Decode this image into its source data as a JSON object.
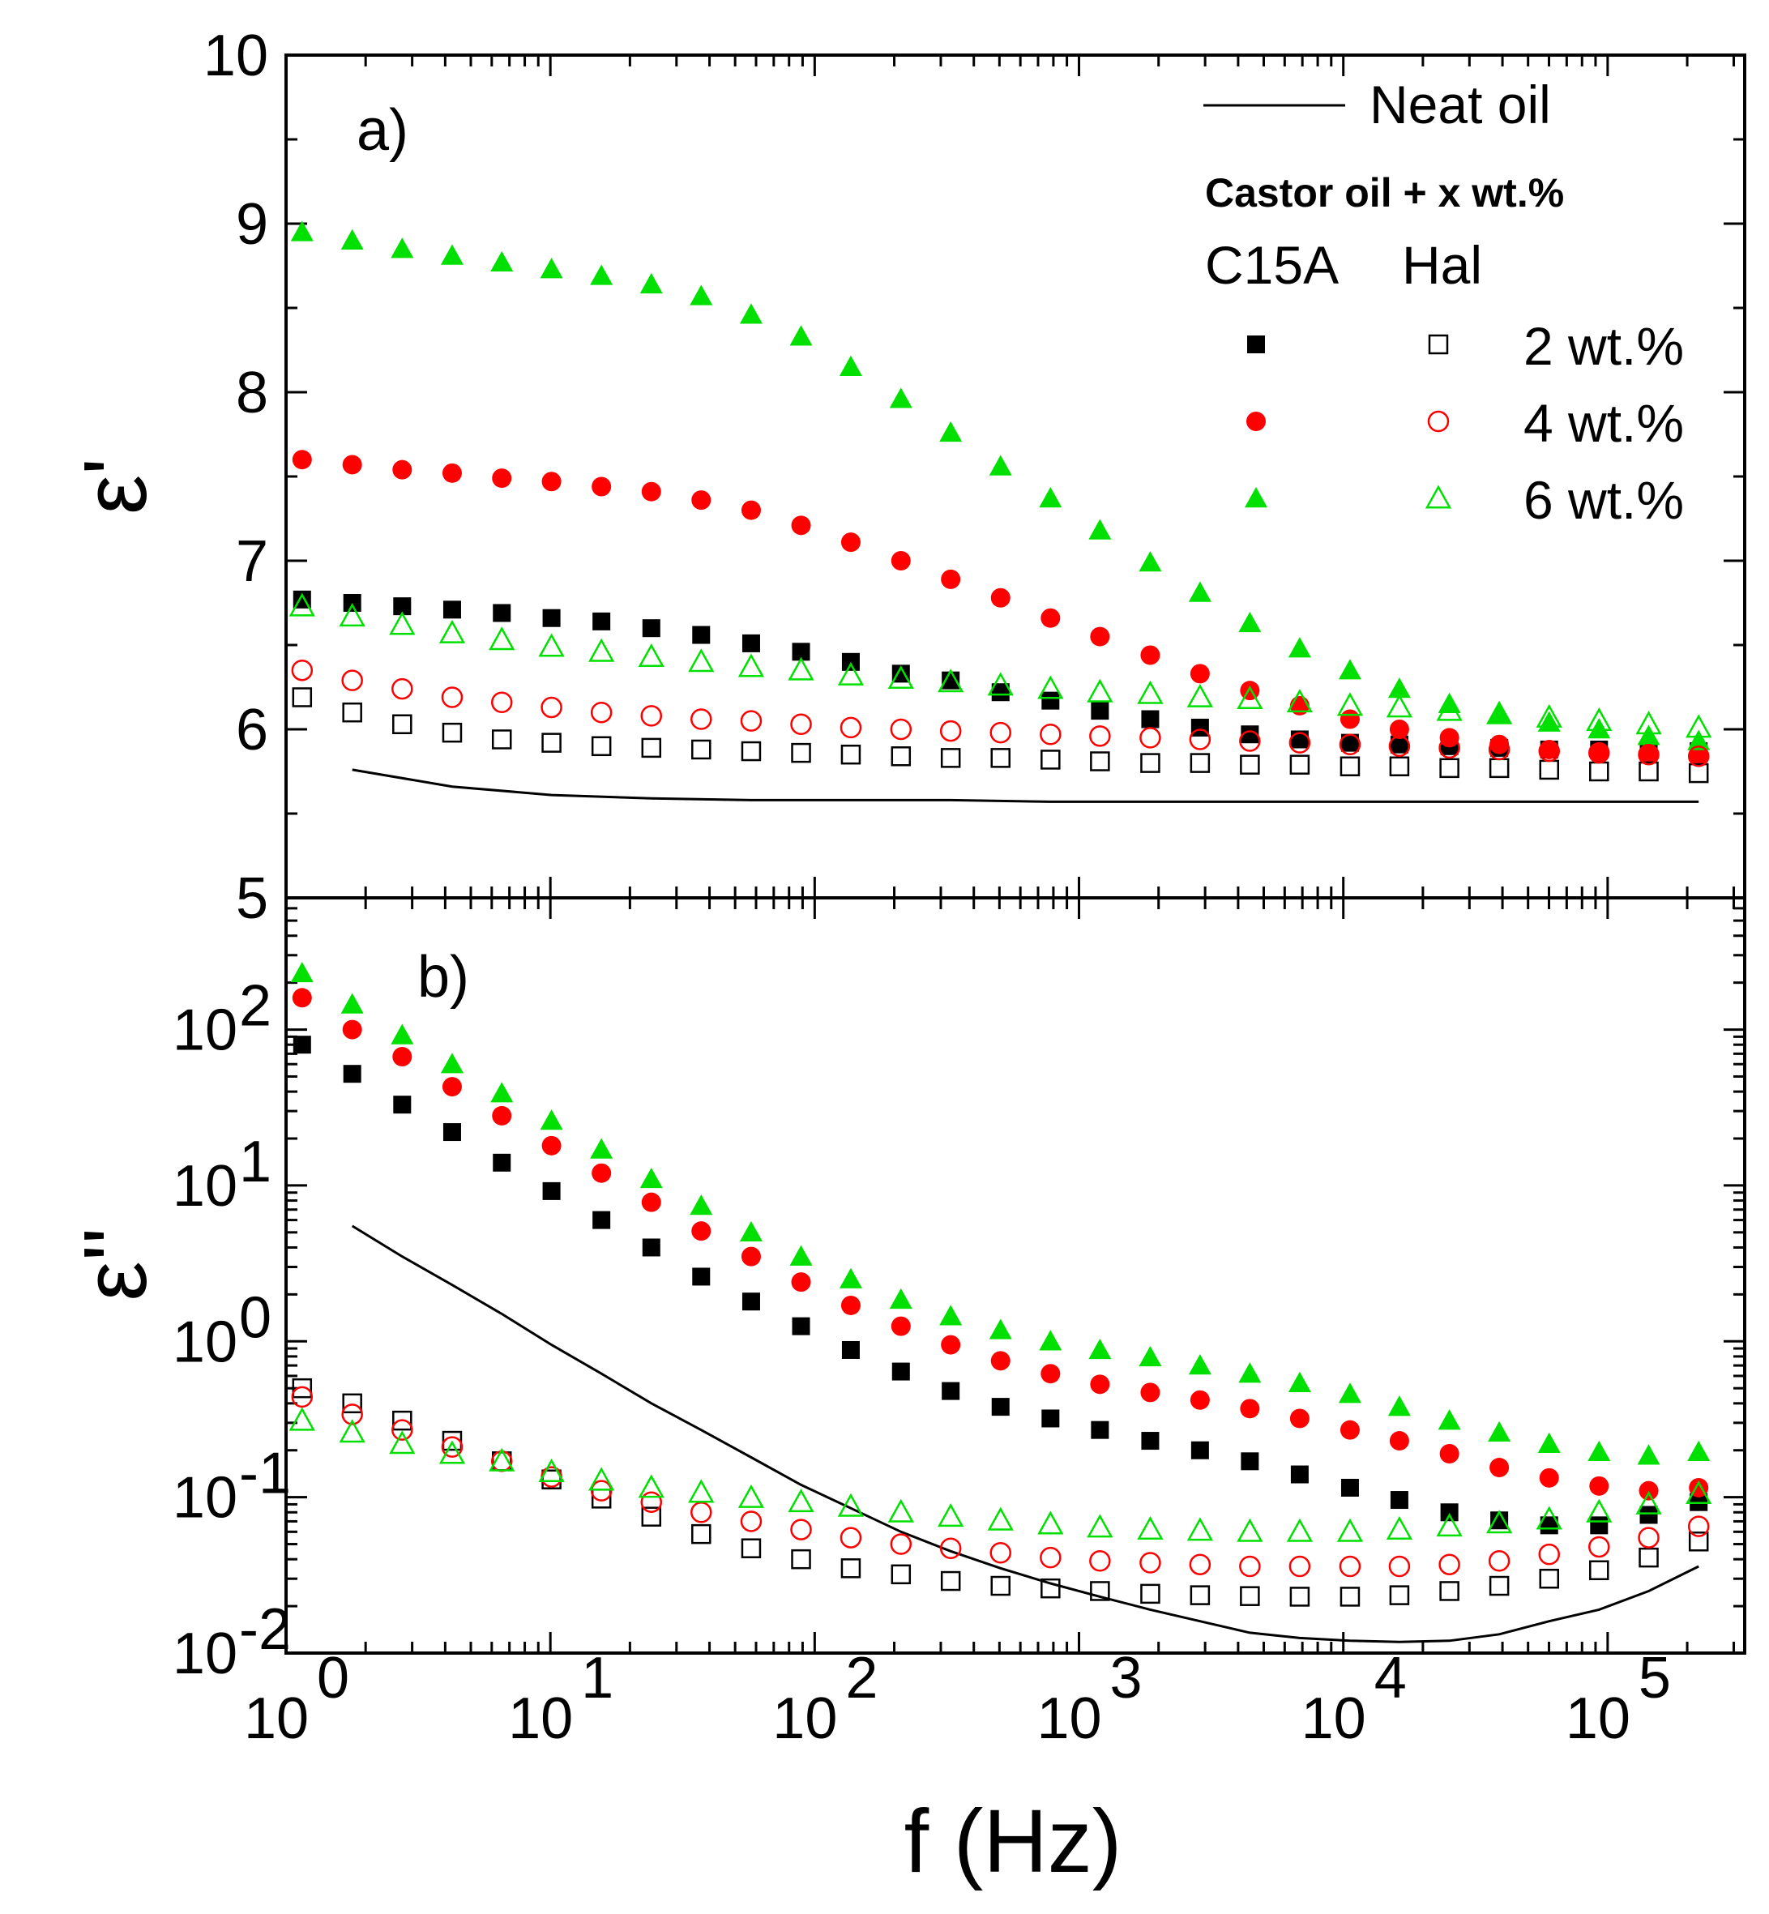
{
  "chart_data": [
    {
      "panel": "a)",
      "type": "scatter",
      "xscale": "log",
      "yscale": "linear",
      "xlim": [
        1,
        330000
      ],
      "ylim": [
        5,
        10
      ],
      "ylabel": "ε'",
      "yticks": [
        5,
        6,
        7,
        8,
        9,
        10
      ],
      "x": [
        1.15,
        1.78,
        2.75,
        4.25,
        6.55,
        10.1,
        15.6,
        24.1,
        37.2,
        57.5,
        88.8,
        137,
        212,
        327,
        505,
        780,
        1200,
        1860,
        2870,
        4430,
        6840,
        10600,
        16300,
        25200,
        38900,
        60100,
        92800,
        143000,
        221000
      ],
      "series": [
        {
          "name": "C15A 2 wt.%",
          "marker": "square",
          "filled": true,
          "color": "#000000",
          "values": [
            6.77,
            6.75,
            6.73,
            6.71,
            6.69,
            6.66,
            6.64,
            6.6,
            6.56,
            6.51,
            6.46,
            6.4,
            6.33,
            6.29,
            6.22,
            6.17,
            6.11,
            6.06,
            6.01,
            5.97,
            5.94,
            5.92,
            5.91,
            5.9,
            5.89,
            5.88,
            5.88,
            5.87,
            5.87
          ]
        },
        {
          "name": "C15A 4 wt.%",
          "marker": "circle",
          "filled": true,
          "color": "#ff0000",
          "values": [
            7.6,
            7.57,
            7.54,
            7.52,
            7.49,
            7.47,
            7.44,
            7.41,
            7.36,
            7.3,
            7.21,
            7.11,
            7.0,
            6.89,
            6.78,
            6.66,
            6.55,
            6.44,
            6.33,
            6.23,
            6.14,
            6.06,
            6.0,
            5.95,
            5.91,
            5.88,
            5.86,
            5.85,
            5.84
          ]
        },
        {
          "name": "C15A 6 wt.%",
          "marker": "triangle",
          "filled": true,
          "color": "#00e000",
          "values": [
            8.95,
            8.9,
            8.85,
            8.81,
            8.77,
            8.73,
            8.69,
            8.64,
            8.57,
            8.46,
            8.33,
            8.15,
            7.96,
            7.76,
            7.56,
            7.37,
            7.18,
            6.99,
            6.81,
            6.63,
            6.48,
            6.35,
            6.24,
            6.15,
            6.09,
            6.04,
            6.0,
            5.96,
            5.93
          ]
        },
        {
          "name": "Hal 2 wt.%",
          "marker": "square",
          "filled": false,
          "color": "#000000",
          "values": [
            6.19,
            6.1,
            6.03,
            5.98,
            5.94,
            5.92,
            5.9,
            5.89,
            5.88,
            5.87,
            5.86,
            5.85,
            5.84,
            5.83,
            5.83,
            5.82,
            5.81,
            5.8,
            5.8,
            5.79,
            5.79,
            5.78,
            5.78,
            5.77,
            5.77,
            5.76,
            5.75,
            5.75,
            5.74
          ]
        },
        {
          "name": "Hal 4 wt.%",
          "marker": "circle",
          "filled": false,
          "color": "#ff0000",
          "values": [
            6.35,
            6.29,
            6.24,
            6.19,
            6.16,
            6.13,
            6.1,
            6.08,
            6.06,
            6.05,
            6.03,
            6.01,
            6.0,
            5.99,
            5.98,
            5.97,
            5.96,
            5.95,
            5.94,
            5.93,
            5.92,
            5.91,
            5.9,
            5.89,
            5.88,
            5.87,
            5.86,
            5.85,
            5.84
          ]
        },
        {
          "name": "Hal 6 wt.%",
          "marker": "triangle",
          "filled": false,
          "color": "#00e000",
          "values": [
            6.73,
            6.67,
            6.62,
            6.57,
            6.53,
            6.49,
            6.46,
            6.43,
            6.4,
            6.37,
            6.35,
            6.32,
            6.3,
            6.28,
            6.26,
            6.24,
            6.22,
            6.21,
            6.19,
            6.18,
            6.16,
            6.14,
            6.13,
            6.11,
            6.09,
            6.07,
            6.05,
            6.03,
            6.01
          ]
        },
        {
          "name": "Neat oil",
          "type": "line",
          "color": "#000000",
          "x": [
            1.78,
            4.25,
            10.1,
            24.1,
            57.5,
            137,
            327,
            780,
            1860,
            4430,
            10600,
            25200,
            60100,
            143000,
            221000
          ],
          "values": [
            5.76,
            5.66,
            5.61,
            5.59,
            5.58,
            5.58,
            5.58,
            5.57,
            5.57,
            5.57,
            5.57,
            5.57,
            5.57,
            5.57,
            5.57
          ]
        }
      ]
    },
    {
      "panel": "b)",
      "type": "scatter",
      "xscale": "log",
      "yscale": "log",
      "xlim": [
        1,
        330000
      ],
      "ylim": [
        0.01,
        700
      ],
      "ylabel": "ε''",
      "xlabel": "f (Hz)",
      "x": [
        1.15,
        1.78,
        2.75,
        4.25,
        6.55,
        10.1,
        15.6,
        24.1,
        37.2,
        57.5,
        88.8,
        137,
        212,
        327,
        505,
        780,
        1200,
        1860,
        2870,
        4430,
        6840,
        10600,
        16300,
        25200,
        38900,
        60100,
        92800,
        143000,
        221000
      ],
      "series": [
        {
          "name": "C15A 2 wt.%",
          "marker": "square",
          "filled": true,
          "color": "#000000",
          "values": [
            80,
            52,
            33,
            22,
            14,
            9.2,
            6.0,
            4.0,
            2.6,
            1.8,
            1.25,
            0.88,
            0.64,
            0.48,
            0.38,
            0.32,
            0.27,
            0.23,
            0.2,
            0.17,
            0.14,
            0.115,
            0.096,
            0.08,
            0.071,
            0.066,
            0.066,
            0.077,
            0.093
          ]
        },
        {
          "name": "C15A 4 wt.%",
          "marker": "circle",
          "filled": true,
          "color": "#ff0000",
          "values": [
            160,
            100,
            67,
            43,
            28,
            18,
            12,
            7.8,
            5.1,
            3.5,
            2.4,
            1.7,
            1.25,
            0.95,
            0.75,
            0.62,
            0.53,
            0.47,
            0.42,
            0.37,
            0.32,
            0.27,
            0.23,
            0.19,
            0.155,
            0.133,
            0.118,
            0.11,
            0.115
          ]
        },
        {
          "name": "C15A 6 wt.%",
          "marker": "triangle",
          "filled": true,
          "color": "#00e000",
          "values": [
            230,
            145,
            92,
            60,
            39,
            26,
            17,
            11,
            7.4,
            5.0,
            3.5,
            2.5,
            1.85,
            1.45,
            1.18,
            1.0,
            0.88,
            0.79,
            0.7,
            0.62,
            0.54,
            0.46,
            0.38,
            0.31,
            0.26,
            0.22,
            0.195,
            0.185,
            0.195
          ]
        },
        {
          "name": "Hal 2 wt.%",
          "marker": "square",
          "filled": false,
          "color": "#000000",
          "values": [
            0.5,
            0.4,
            0.31,
            0.23,
            0.17,
            0.13,
            0.098,
            0.075,
            0.058,
            0.047,
            0.04,
            0.035,
            0.032,
            0.029,
            0.027,
            0.026,
            0.025,
            0.024,
            0.0235,
            0.0232,
            0.023,
            0.023,
            0.0235,
            0.025,
            0.027,
            0.03,
            0.034,
            0.041,
            0.052
          ]
        },
        {
          "name": "Hal 4 wt.%",
          "marker": "circle",
          "filled": false,
          "color": "#ff0000",
          "values": [
            0.44,
            0.34,
            0.27,
            0.21,
            0.17,
            0.135,
            0.11,
            0.093,
            0.08,
            0.07,
            0.062,
            0.055,
            0.05,
            0.047,
            0.044,
            0.041,
            0.039,
            0.038,
            0.037,
            0.036,
            0.036,
            0.036,
            0.036,
            0.037,
            0.039,
            0.043,
            0.048,
            0.055,
            0.065
          ]
        },
        {
          "name": "Hal 6 wt.%",
          "marker": "triangle",
          "filled": false,
          "color": "#00e000",
          "values": [
            0.31,
            0.26,
            0.22,
            0.19,
            0.17,
            0.145,
            0.128,
            0.115,
            0.107,
            0.099,
            0.093,
            0.087,
            0.08,
            0.075,
            0.071,
            0.067,
            0.064,
            0.062,
            0.061,
            0.06,
            0.06,
            0.06,
            0.062,
            0.065,
            0.068,
            0.072,
            0.08,
            0.09,
            0.105
          ]
        },
        {
          "name": "Neat oil",
          "type": "line",
          "color": "#000000",
          "x": [
            1.78,
            2.75,
            4.25,
            6.55,
            10.1,
            15.6,
            24.1,
            37.2,
            57.5,
            88.8,
            137,
            212,
            327,
            505,
            780,
            1200,
            1860,
            2870,
            4430,
            6840,
            10600,
            16300,
            25200,
            38900,
            60100,
            92800,
            143000,
            221000
          ],
          "values": [
            5.5,
            3.5,
            2.3,
            1.5,
            0.95,
            0.62,
            0.4,
            0.27,
            0.18,
            0.12,
            0.085,
            0.06,
            0.045,
            0.035,
            0.028,
            0.023,
            0.019,
            0.016,
            0.0135,
            0.0125,
            0.012,
            0.0118,
            0.012,
            0.0132,
            0.016,
            0.019,
            0.025,
            0.036
          ]
        }
      ]
    }
  ],
  "labels": {
    "panel_a": "a)",
    "panel_b": "b)",
    "ylabel_a": "ε'",
    "ylabel_b": "ε''",
    "xlabel": "f (Hz)",
    "yticks_a": [
      "5",
      "6",
      "7",
      "8",
      "9",
      "10"
    ],
    "yticks_b_base": "10",
    "yticks_b_exp": [
      "-2",
      "-1",
      "0",
      "1",
      "2"
    ],
    "xticks_base": "10",
    "xticks_exp": [
      "0",
      "1",
      "2",
      "3",
      "4",
      "5"
    ],
    "legend": {
      "neat_oil": "Neat oil",
      "heading": "Castor oil + x wt.%",
      "col_c15a": "C15A",
      "col_hal": "Hal",
      "rows": [
        "2 wt.%",
        "4 wt.%",
        "6 wt.%"
      ]
    }
  }
}
